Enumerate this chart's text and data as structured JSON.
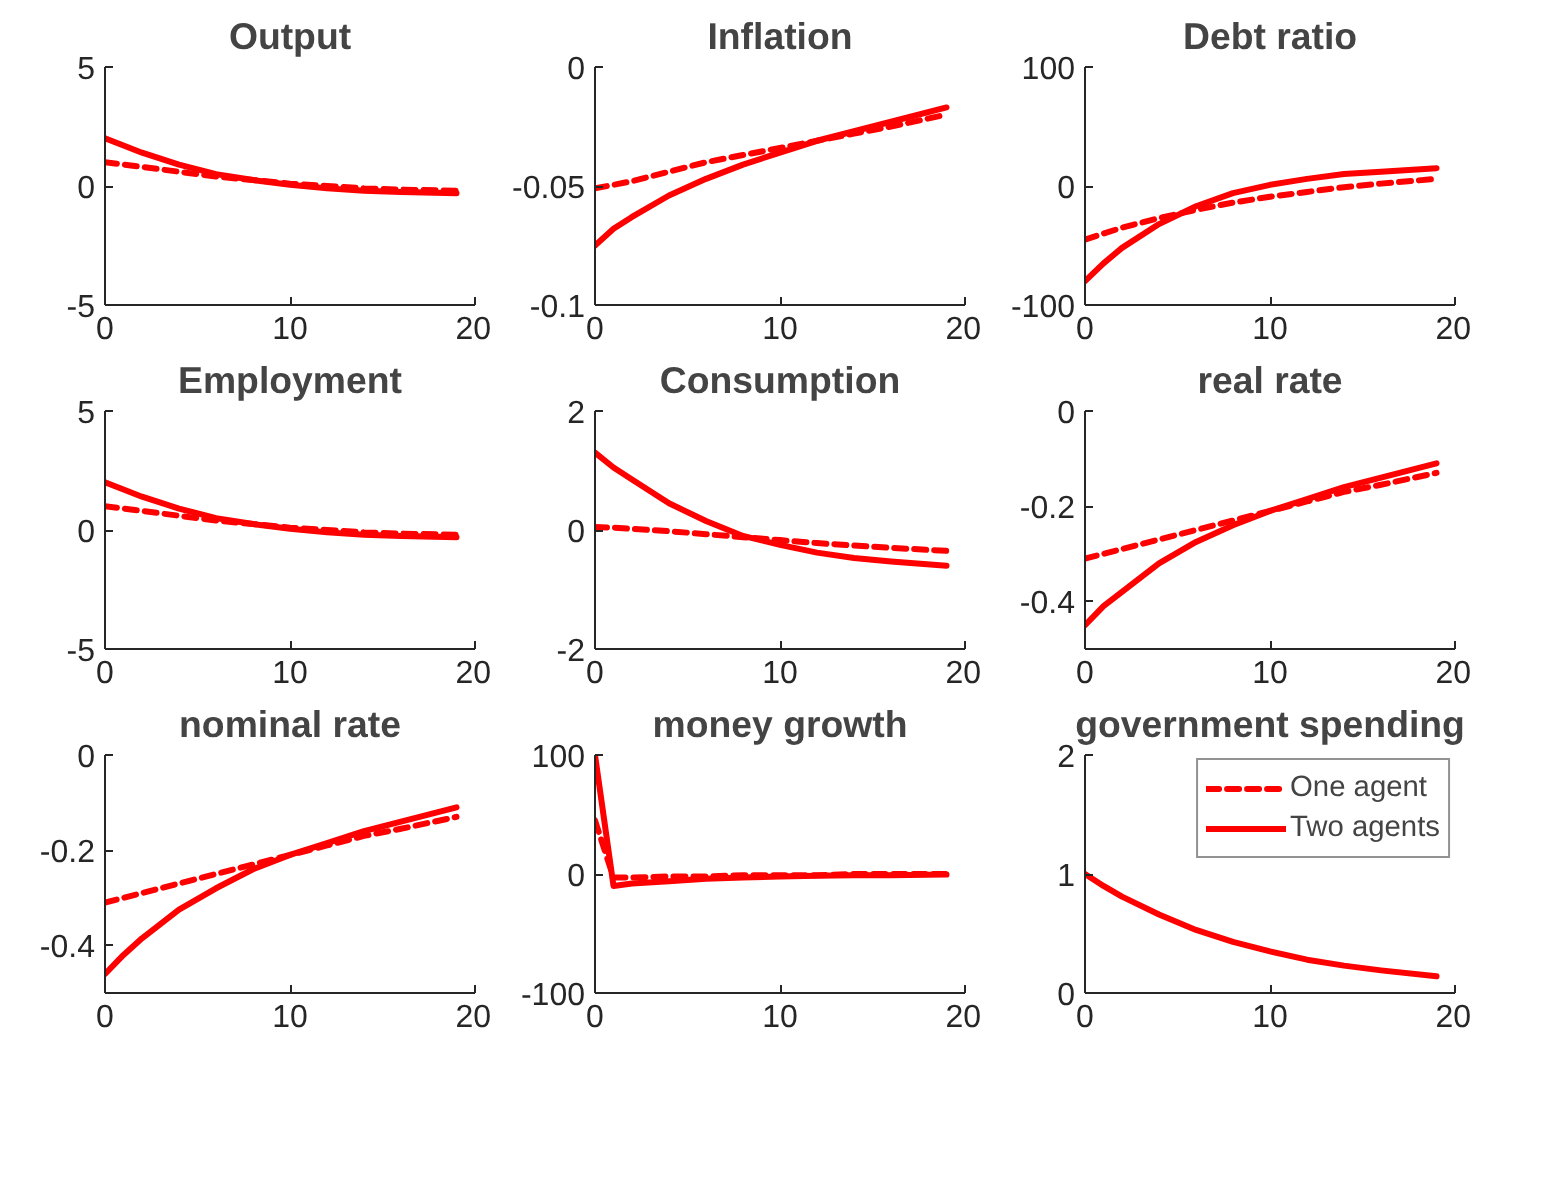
{
  "chart_data": [
    {
      "type": "line",
      "title": "Output",
      "x": [
        0,
        1,
        2,
        4,
        6,
        8,
        10,
        12,
        14,
        16,
        19
      ],
      "xlim": [
        0,
        20
      ],
      "xticks": [
        0,
        10,
        20
      ],
      "ylim": [
        -5,
        5
      ],
      "yticks": [
        -5,
        0,
        5
      ],
      "grid": false,
      "series": [
        {
          "color": "#ff0000",
          "line_style": "dashed",
          "values": [
            1.0,
            0.9,
            0.8,
            0.6,
            0.4,
            0.25,
            0.1,
            0.0,
            -0.1,
            -0.15,
            -0.2
          ]
        },
        {
          "color": "#ff0000",
          "line_style": "solid",
          "values": [
            2.0,
            1.7,
            1.4,
            0.9,
            0.5,
            0.25,
            0.05,
            -0.1,
            -0.2,
            -0.25,
            -0.3
          ]
        }
      ]
    },
    {
      "type": "line",
      "title": "Inflation",
      "x": [
        0,
        1,
        2,
        4,
        6,
        8,
        10,
        12,
        14,
        16,
        19
      ],
      "xlim": [
        0,
        20
      ],
      "xticks": [
        0,
        10,
        20
      ],
      "ylim": [
        -0.1,
        0
      ],
      "yticks": [
        -0.1,
        -0.05,
        0
      ],
      "grid": false,
      "series": [
        {
          "color": "#ff0000",
          "line_style": "dashed",
          "values": [
            -0.051,
            -0.0495,
            -0.048,
            -0.044,
            -0.04,
            -0.037,
            -0.034,
            -0.031,
            -0.028,
            -0.025,
            -0.02
          ]
        },
        {
          "color": "#ff0000",
          "line_style": "solid",
          "values": [
            -0.075,
            -0.068,
            -0.063,
            -0.054,
            -0.047,
            -0.041,
            -0.036,
            -0.031,
            -0.027,
            -0.023,
            -0.017
          ]
        }
      ]
    },
    {
      "type": "line",
      "title": "Debt ratio",
      "x": [
        0,
        1,
        2,
        4,
        6,
        8,
        10,
        12,
        14,
        16,
        19
      ],
      "xlim": [
        0,
        20
      ],
      "xticks": [
        0,
        10,
        20
      ],
      "ylim": [
        -100,
        100
      ],
      "yticks": [
        -100,
        0,
        100
      ],
      "grid": false,
      "series": [
        {
          "color": "#ff0000",
          "line_style": "dashed",
          "values": [
            -45,
            -40,
            -35,
            -27,
            -20,
            -14,
            -9,
            -5,
            -1,
            2,
            6
          ]
        },
        {
          "color": "#ff0000",
          "line_style": "solid",
          "values": [
            -80,
            -65,
            -52,
            -32,
            -17,
            -6,
            1,
            6,
            10,
            12,
            15
          ]
        }
      ]
    },
    {
      "type": "line",
      "title": "Employment",
      "x": [
        0,
        1,
        2,
        4,
        6,
        8,
        10,
        12,
        14,
        16,
        19
      ],
      "xlim": [
        0,
        20
      ],
      "xticks": [
        0,
        10,
        20
      ],
      "ylim": [
        -5,
        5
      ],
      "yticks": [
        -5,
        0,
        5
      ],
      "grid": false,
      "series": [
        {
          "color": "#ff0000",
          "line_style": "dashed",
          "values": [
            1.0,
            0.9,
            0.8,
            0.6,
            0.4,
            0.25,
            0.1,
            0.0,
            -0.1,
            -0.15,
            -0.2
          ]
        },
        {
          "color": "#ff0000",
          "line_style": "solid",
          "values": [
            2.0,
            1.7,
            1.4,
            0.9,
            0.5,
            0.25,
            0.05,
            -0.1,
            -0.2,
            -0.25,
            -0.3
          ]
        }
      ]
    },
    {
      "type": "line",
      "title": "Consumption",
      "x": [
        0,
        1,
        2,
        4,
        6,
        8,
        10,
        12,
        14,
        16,
        19
      ],
      "xlim": [
        0,
        20
      ],
      "xticks": [
        0,
        10,
        20
      ],
      "ylim": [
        -2,
        2
      ],
      "yticks": [
        -2,
        0,
        2
      ],
      "grid": false,
      "series": [
        {
          "color": "#ff0000",
          "line_style": "dashed",
          "values": [
            0.05,
            0.04,
            0.02,
            -0.02,
            -0.07,
            -0.12,
            -0.17,
            -0.22,
            -0.26,
            -0.3,
            -0.35
          ]
        },
        {
          "color": "#ff0000",
          "line_style": "solid",
          "values": [
            1.3,
            1.05,
            0.85,
            0.45,
            0.15,
            -0.1,
            -0.25,
            -0.38,
            -0.47,
            -0.53,
            -0.6
          ]
        }
      ]
    },
    {
      "type": "line",
      "title": "real rate",
      "x": [
        0,
        1,
        2,
        4,
        6,
        8,
        10,
        12,
        14,
        16,
        19
      ],
      "xlim": [
        0,
        20
      ],
      "xticks": [
        0,
        10,
        20
      ],
      "ylim": [
        -0.5,
        0
      ],
      "yticks": [
        -0.4,
        -0.2,
        0
      ],
      "grid": false,
      "series": [
        {
          "color": "#ff0000",
          "line_style": "dashed",
          "values": [
            -0.31,
            -0.3,
            -0.29,
            -0.27,
            -0.25,
            -0.23,
            -0.21,
            -0.19,
            -0.17,
            -0.155,
            -0.13
          ]
        },
        {
          "color": "#ff0000",
          "line_style": "solid",
          "values": [
            -0.45,
            -0.41,
            -0.38,
            -0.32,
            -0.275,
            -0.24,
            -0.21,
            -0.185,
            -0.16,
            -0.14,
            -0.11
          ]
        }
      ]
    },
    {
      "type": "line",
      "title": "nominal rate",
      "x": [
        0,
        1,
        2,
        4,
        6,
        8,
        10,
        12,
        14,
        16,
        19
      ],
      "xlim": [
        0,
        20
      ],
      "xticks": [
        0,
        10,
        20
      ],
      "ylim": [
        -0.5,
        0
      ],
      "yticks": [
        -0.4,
        -0.2,
        0
      ],
      "grid": false,
      "series": [
        {
          "color": "#ff0000",
          "line_style": "dashed",
          "values": [
            -0.31,
            -0.3,
            -0.29,
            -0.27,
            -0.25,
            -0.23,
            -0.21,
            -0.19,
            -0.17,
            -0.155,
            -0.13
          ]
        },
        {
          "color": "#ff0000",
          "line_style": "solid",
          "values": [
            -0.46,
            -0.42,
            -0.385,
            -0.325,
            -0.28,
            -0.24,
            -0.21,
            -0.185,
            -0.16,
            -0.14,
            -0.11
          ]
        }
      ]
    },
    {
      "type": "line",
      "title": "money growth",
      "x": [
        0,
        1,
        2,
        4,
        6,
        8,
        10,
        12,
        14,
        16,
        19
      ],
      "xlim": [
        0,
        20
      ],
      "xticks": [
        0,
        10,
        20
      ],
      "ylim": [
        -100,
        100
      ],
      "yticks": [
        -100,
        0,
        100
      ],
      "grid": false,
      "series": [
        {
          "color": "#ff0000",
          "line_style": "dashed",
          "values": [
            45,
            -3,
            -3,
            -2,
            -2,
            -1,
            -1,
            -1,
            0,
            0,
            0
          ]
        },
        {
          "color": "#ff0000",
          "line_style": "solid",
          "values": [
            100,
            -10,
            -8,
            -6,
            -4,
            -3,
            -2,
            -1.5,
            -1,
            -1,
            -0.5
          ]
        }
      ]
    },
    {
      "type": "line",
      "title": "government spending",
      "x": [
        0,
        1,
        2,
        4,
        6,
        8,
        10,
        12,
        14,
        16,
        19
      ],
      "xlim": [
        0,
        20
      ],
      "xticks": [
        0,
        10,
        20
      ],
      "ylim": [
        0,
        2
      ],
      "yticks": [
        0,
        1,
        2
      ],
      "grid": false,
      "legend": "top right",
      "series": [
        {
          "name": "One agent",
          "color": "#ff0000",
          "line_style": "dashed",
          "values": [
            null,
            null,
            null,
            null,
            null,
            null,
            null,
            null,
            null,
            null,
            null
          ]
        },
        {
          "name": "Two agents",
          "color": "#ff0000",
          "line_style": "solid",
          "values": [
            1,
            0.9,
            0.81,
            0.66,
            0.53,
            0.43,
            0.35,
            0.28,
            0.23,
            0.19,
            0.14
          ]
        }
      ]
    }
  ]
}
